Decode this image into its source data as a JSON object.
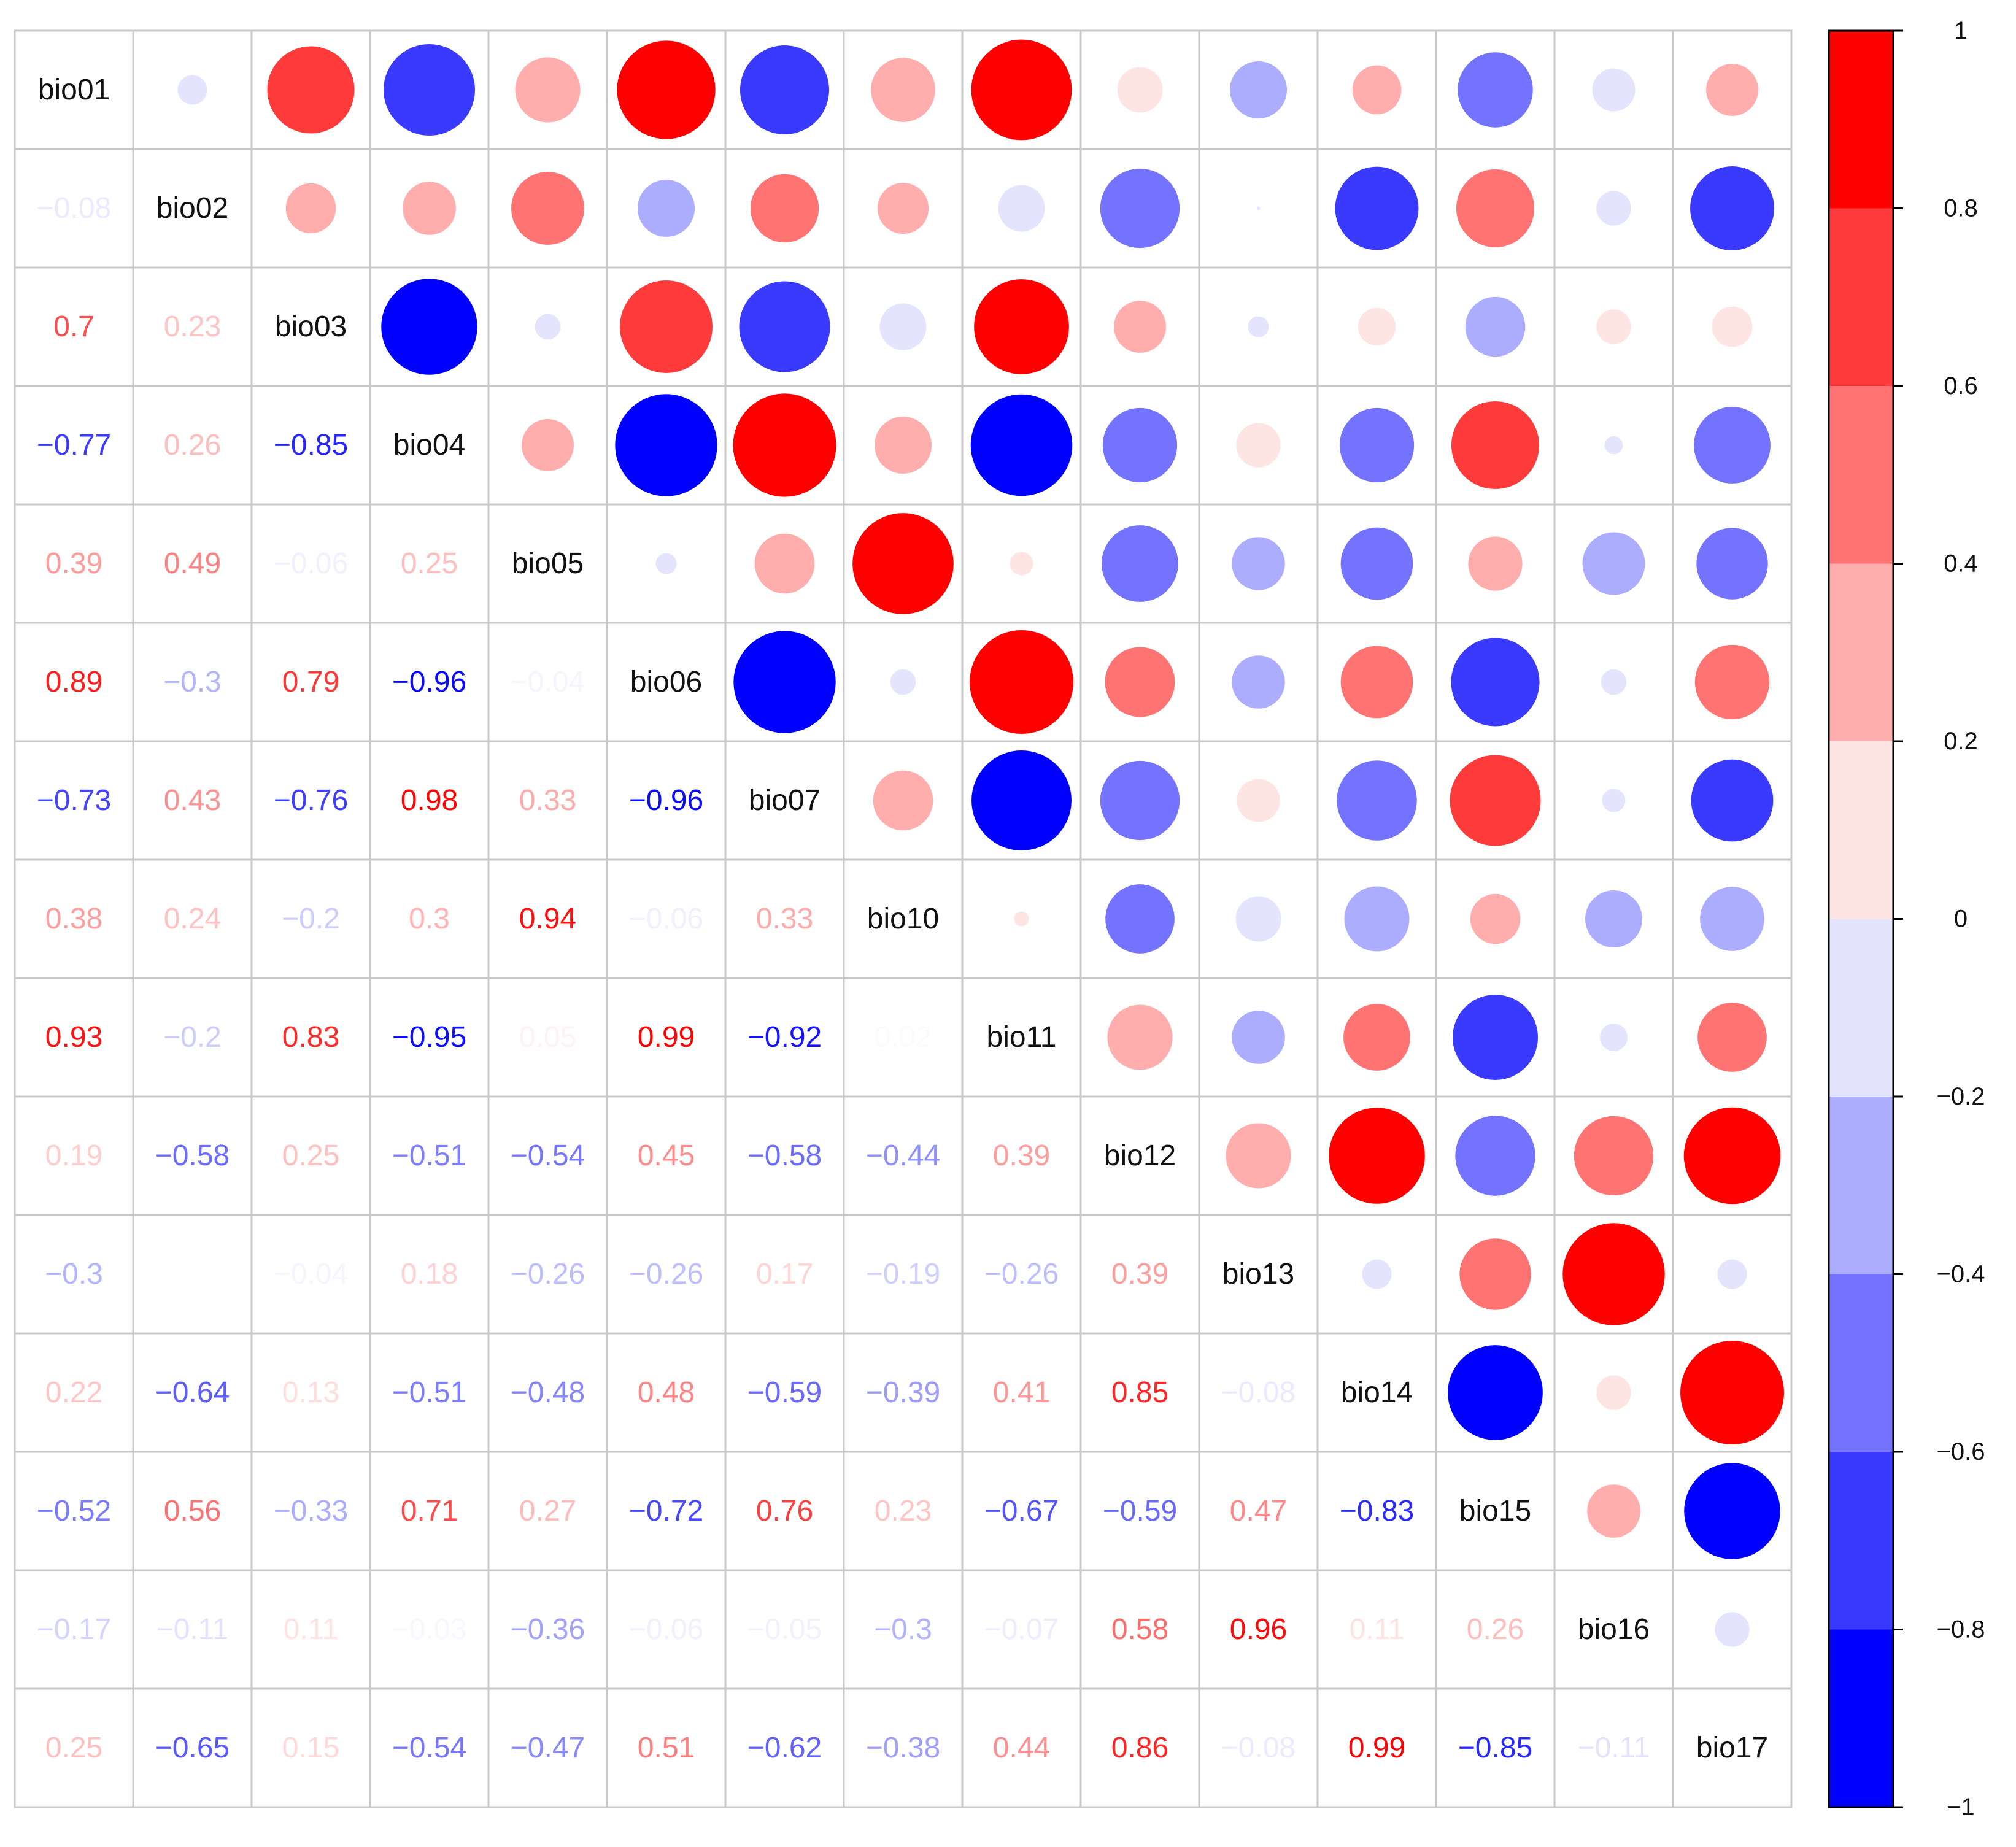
{
  "chart_data": {
    "type": "heatmap",
    "variables": [
      "bio01",
      "bio02",
      "bio03",
      "bio04",
      "bio05",
      "bio06",
      "bio07",
      "bio10",
      "bio11",
      "bio12",
      "bio13",
      "bio14",
      "bio15",
      "bio16",
      "bio17"
    ],
    "correlations": [
      [
        1,
        -0.08,
        0.7,
        -0.77,
        0.39,
        0.89,
        -0.73,
        0.38,
        0.93,
        0.19,
        -0.3,
        0.22,
        -0.52,
        -0.17,
        0.25
      ],
      [
        -0.08,
        1,
        0.23,
        0.26,
        0.49,
        -0.3,
        0.43,
        0.24,
        -0.2,
        -0.58,
        0,
        -0.64,
        0.56,
        -0.11,
        -0.65
      ],
      [
        0.7,
        0.23,
        1,
        -0.85,
        -0.06,
        0.79,
        -0.76,
        -0.2,
        0.83,
        0.25,
        -0.04,
        0.13,
        -0.33,
        0.11,
        0.15
      ],
      [
        -0.77,
        0.26,
        -0.85,
        1,
        0.25,
        -0.96,
        0.98,
        0.3,
        -0.95,
        -0.51,
        0.18,
        -0.51,
        0.71,
        -0.03,
        -0.54
      ],
      [
        0.39,
        0.49,
        -0.06,
        0.25,
        1,
        -0.04,
        0.33,
        0.94,
        0.05,
        -0.54,
        -0.26,
        -0.48,
        0.27,
        -0.36,
        -0.47
      ],
      [
        0.89,
        -0.3,
        0.79,
        -0.96,
        -0.04,
        1,
        -0.96,
        -0.06,
        0.99,
        0.45,
        -0.26,
        0.48,
        -0.72,
        -0.06,
        0.51
      ],
      [
        -0.73,
        0.43,
        -0.76,
        0.98,
        0.33,
        -0.96,
        1,
        0.33,
        -0.92,
        -0.58,
        0.17,
        -0.59,
        0.76,
        -0.05,
        -0.62
      ],
      [
        0.38,
        0.24,
        -0.2,
        0.3,
        0.94,
        -0.06,
        0.33,
        1,
        0.02,
        -0.44,
        -0.19,
        -0.39,
        0.23,
        -0.3,
        -0.38
      ],
      [
        0.93,
        -0.2,
        0.83,
        -0.95,
        0.05,
        0.99,
        -0.92,
        0.02,
        1,
        0.39,
        -0.26,
        0.41,
        -0.67,
        -0.07,
        0.44
      ],
      [
        0.19,
        -0.58,
        0.25,
        -0.51,
        -0.54,
        0.45,
        -0.58,
        -0.44,
        0.39,
        1,
        0.39,
        0.85,
        -0.59,
        0.58,
        0.86
      ],
      [
        -0.3,
        0,
        -0.04,
        0.18,
        -0.26,
        -0.26,
        0.17,
        -0.19,
        -0.26,
        0.39,
        1,
        -0.08,
        0.47,
        0.96,
        -0.08
      ],
      [
        0.22,
        -0.64,
        0.13,
        -0.51,
        -0.48,
        0.48,
        -0.59,
        -0.39,
        0.41,
        0.85,
        -0.08,
        1,
        -0.83,
        0.11,
        0.99
      ],
      [
        -0.52,
        0.56,
        -0.33,
        0.71,
        0.27,
        -0.72,
        0.76,
        0.23,
        -0.67,
        -0.59,
        0.47,
        -0.83,
        1,
        0.26,
        -0.85
      ],
      [
        -0.17,
        -0.11,
        0.11,
        -0.03,
        -0.36,
        -0.06,
        -0.05,
        -0.3,
        -0.07,
        0.58,
        0.96,
        0.11,
        0.26,
        1,
        -0.11
      ],
      [
        0.25,
        -0.65,
        0.15,
        -0.54,
        -0.47,
        0.51,
        -0.62,
        -0.38,
        0.44,
        0.86,
        -0.08,
        0.99,
        -0.85,
        -0.11,
        1
      ]
    ],
    "lower_triangle": "numbers",
    "upper_triangle": "circles",
    "diagonal": "variable names",
    "colorbar": {
      "range": [
        -1,
        1
      ],
      "ticks": [
        1,
        0.8,
        0.6,
        0.4,
        0.2,
        0,
        -0.2,
        -0.4,
        -0.6,
        -0.8,
        -1
      ],
      "tick_labels": [
        "1",
        "0.8",
        "0.6",
        "0.4",
        "0.2",
        "0",
        "−0.2",
        "−0.4",
        "−0.6",
        "−0.8",
        "−1"
      ],
      "colors_top_to_bottom": [
        "#FF0000",
        "#FF3A3A",
        "#FF7373",
        "#FFADAD",
        "#FFE4E4",
        "#E4E4FF",
        "#ADADFF",
        "#7373FF",
        "#3A3AFF",
        "#0000FF"
      ]
    }
  }
}
